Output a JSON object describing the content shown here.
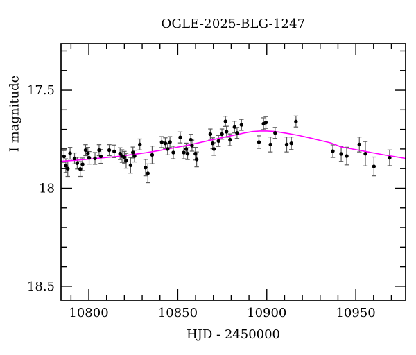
{
  "page": {
    "background": "#ffffff"
  },
  "chart_data": {
    "type": "scatter",
    "title": "OGLE-2025-BLG-1247",
    "xlabel": "HJD - 2450000",
    "ylabel": "I magnitude",
    "x_axis": {
      "min": 10784.4,
      "max": 10978.0,
      "major_ticks": [
        10800,
        10850,
        10900,
        10950
      ],
      "major_tick_labels": [
        "10800",
        "10850",
        "10900",
        "10950"
      ],
      "minor_tick_step": 10
    },
    "y_axis": {
      "top_value": 17.263,
      "bottom_value": 18.571,
      "inverted_magnitude_axis": true,
      "major_ticks": [
        17.5,
        18.0,
        18.5
      ],
      "major_tick_labels": [
        "17.5",
        "18",
        "18.5"
      ],
      "minor_tick_step": 0.1
    },
    "legend": "none",
    "grid": false,
    "colors": {
      "points": "#000000",
      "error_bars": "#5a5a5a",
      "model_curve": "#ff00ff",
      "axis": "#000000",
      "background": "#ffffff"
    },
    "points_format": [
      "hjd",
      "mag",
      "err"
    ],
    "points": [
      [
        10786.1,
        17.838,
        0.03
      ],
      [
        10787.1,
        17.885,
        0.035
      ],
      [
        10788.2,
        17.9,
        0.04
      ],
      [
        10789.5,
        17.822,
        0.03
      ],
      [
        10792.0,
        17.848,
        0.028
      ],
      [
        10793.5,
        17.872,
        0.03
      ],
      [
        10795.2,
        17.902,
        0.038
      ],
      [
        10796.5,
        17.878,
        0.032
      ],
      [
        10798.2,
        17.806,
        0.028
      ],
      [
        10799.5,
        17.822,
        0.03
      ],
      [
        10800.2,
        17.845,
        0.032
      ],
      [
        10803.5,
        17.848,
        0.03
      ],
      [
        10805.8,
        17.806,
        0.028
      ],
      [
        10806.8,
        17.838,
        0.035
      ],
      [
        10811.5,
        17.806,
        0.028
      ],
      [
        10814.3,
        17.812,
        0.032
      ],
      [
        10817.6,
        17.824,
        0.03
      ],
      [
        10818.7,
        17.836,
        0.032
      ],
      [
        10820.0,
        17.842,
        0.03
      ],
      [
        10821.0,
        17.86,
        0.038
      ],
      [
        10823.5,
        17.883,
        0.04
      ],
      [
        10824.8,
        17.818,
        0.028
      ],
      [
        10825.7,
        17.836,
        0.03
      ],
      [
        10828.7,
        17.777,
        0.028
      ],
      [
        10831.9,
        17.895,
        0.042
      ],
      [
        10833.2,
        17.924,
        0.048
      ],
      [
        10835.6,
        17.83,
        0.045
      ],
      [
        10841.0,
        17.765,
        0.028
      ],
      [
        10843.0,
        17.771,
        0.028
      ],
      [
        10844.3,
        17.8,
        0.03
      ],
      [
        10845.6,
        17.765,
        0.028
      ],
      [
        10847.5,
        17.818,
        0.032
      ],
      [
        10851.4,
        17.741,
        0.028
      ],
      [
        10853.4,
        17.818,
        0.032
      ],
      [
        10854.7,
        17.8,
        0.03
      ],
      [
        10855.5,
        17.824,
        0.03
      ],
      [
        10857.3,
        17.753,
        0.028
      ],
      [
        10858.0,
        17.783,
        0.028
      ],
      [
        10859.9,
        17.824,
        0.032
      ],
      [
        10860.6,
        17.853,
        0.038
      ],
      [
        10868.3,
        17.724,
        0.026
      ],
      [
        10869.6,
        17.771,
        0.028
      ],
      [
        10870.3,
        17.8,
        0.032
      ],
      [
        10872.9,
        17.759,
        0.028
      ],
      [
        10874.8,
        17.724,
        0.026
      ],
      [
        10876.8,
        17.659,
        0.026
      ],
      [
        10877.4,
        17.712,
        0.028
      ],
      [
        10879.4,
        17.753,
        0.03
      ],
      [
        10881.9,
        17.688,
        0.03
      ],
      [
        10883.3,
        17.718,
        0.028
      ],
      [
        10885.8,
        17.677,
        0.028
      ],
      [
        10895.6,
        17.765,
        0.032
      ],
      [
        10898.2,
        17.671,
        0.03
      ],
      [
        10899.5,
        17.665,
        0.03
      ],
      [
        10902.1,
        17.777,
        0.038
      ],
      [
        10904.7,
        17.718,
        0.028
      ],
      [
        10911.2,
        17.777,
        0.038
      ],
      [
        10913.8,
        17.771,
        0.032
      ],
      [
        10916.4,
        17.66,
        0.028
      ],
      [
        10937.1,
        17.811,
        0.032
      ],
      [
        10941.8,
        17.825,
        0.038
      ],
      [
        10944.9,
        17.836,
        0.045
      ],
      [
        10952.0,
        17.777,
        0.038
      ],
      [
        10955.4,
        17.824,
        0.062
      ],
      [
        10960.2,
        17.889,
        0.048
      ],
      [
        10969.0,
        17.845,
        0.04
      ]
    ],
    "model_curve": [
      [
        10784,
        17.863
      ],
      [
        10792,
        17.858
      ],
      [
        10800,
        17.852
      ],
      [
        10808,
        17.845
      ],
      [
        10816,
        17.838
      ],
      [
        10824,
        17.829
      ],
      [
        10832,
        17.819
      ],
      [
        10840,
        17.807
      ],
      [
        10848,
        17.794
      ],
      [
        10856,
        17.78
      ],
      [
        10864,
        17.764
      ],
      [
        10872,
        17.748
      ],
      [
        10878,
        17.736
      ],
      [
        10884,
        17.725
      ],
      [
        10888,
        17.717
      ],
      [
        10892,
        17.711
      ],
      [
        10896,
        17.708
      ],
      [
        10900,
        17.708
      ],
      [
        10904,
        17.71
      ],
      [
        10908,
        17.715
      ],
      [
        10912,
        17.721
      ],
      [
        10918,
        17.731
      ],
      [
        10924,
        17.743
      ],
      [
        10930,
        17.756
      ],
      [
        10936,
        17.769
      ],
      [
        10942,
        17.79
      ],
      [
        10948,
        17.8
      ],
      [
        10954,
        17.81
      ],
      [
        10960,
        17.82
      ],
      [
        10966,
        17.83
      ],
      [
        10972,
        17.839
      ],
      [
        10978,
        17.848
      ]
    ]
  }
}
